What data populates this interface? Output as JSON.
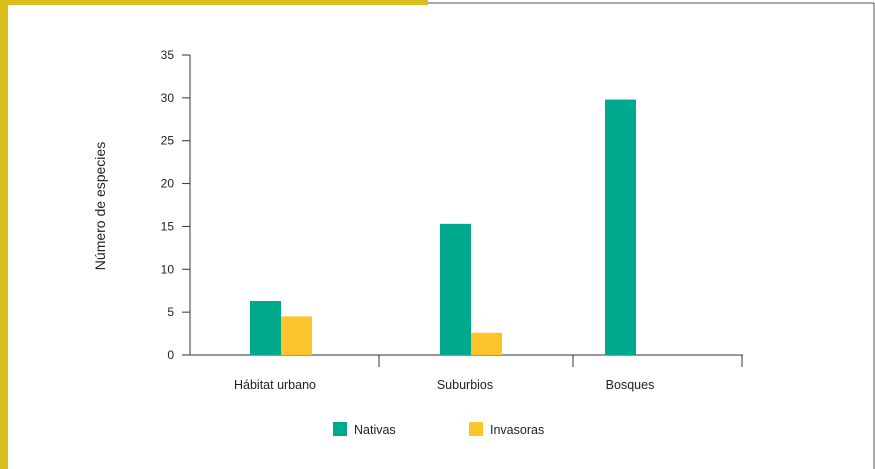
{
  "colors": {
    "frame_accent": "#D9BE1C",
    "frame_border": "#555555",
    "nativas": "#00A88E",
    "invasoras": "#FDC42B",
    "axis": "#333333"
  },
  "chart_data": {
    "type": "bar",
    "title": "",
    "xlabel": "",
    "ylabel": "Número de especies",
    "ylim": [
      0,
      35
    ],
    "yticks": [
      0,
      5,
      10,
      15,
      20,
      25,
      30,
      35
    ],
    "categories": [
      "Hábitat urbano",
      "Suburbios",
      "Bosques"
    ],
    "series": [
      {
        "name": "Nativas",
        "color": "#00A88E",
        "values": [
          6.3,
          15.3,
          29.8
        ]
      },
      {
        "name": "Invasoras",
        "color": "#FDC42B",
        "values": [
          4.5,
          2.6,
          null
        ]
      }
    ],
    "legend_position": "bottom-center",
    "grid": false
  }
}
